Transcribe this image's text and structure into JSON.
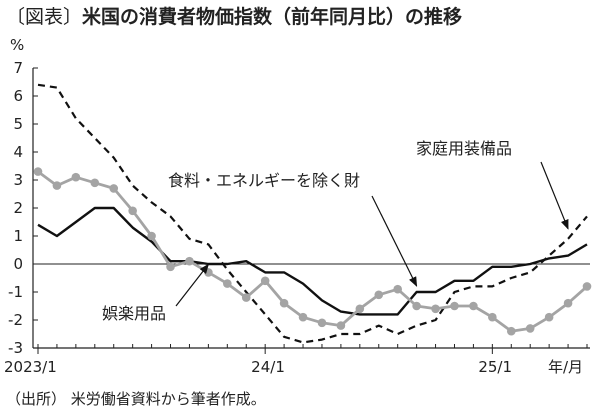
{
  "header": {
    "prefix": "〔図表〕",
    "title": "米国の消費者物価指数（前年同月比）の推移"
  },
  "footer": {
    "source": "（出所）  米労働省資料から筆者作成。"
  },
  "chart_data": {
    "type": "line",
    "ylabel": "%",
    "xlabel": "年/月",
    "ylim": [
      -3,
      7
    ],
    "yticks": [
      -3,
      -2,
      -1,
      0,
      1,
      2,
      3,
      4,
      5,
      6,
      7
    ],
    "x_start": "2023/1",
    "x_months": 30,
    "x_ticks": [
      {
        "index": 0,
        "label": "2023/1"
      },
      {
        "index": 12,
        "label": "24/1"
      },
      {
        "index": 24,
        "label": "25/1"
      }
    ],
    "zero_line": true,
    "grid": false,
    "series": [
      {
        "name": "食料・エネルギーを除く財",
        "style": "solid-black",
        "values": [
          1.4,
          1.0,
          1.5,
          2.0,
          2.0,
          1.3,
          0.8,
          0.1,
          0.1,
          0.0,
          0.0,
          0.1,
          -0.3,
          -0.3,
          -0.7,
          -1.3,
          -1.7,
          -1.8,
          -1.8,
          -1.8,
          -1.0,
          -1.0,
          -0.6,
          -0.6,
          -0.1,
          -0.1,
          0.0,
          0.2,
          0.3,
          0.7
        ]
      },
      {
        "name": "家庭用装備品",
        "style": "dashed-black",
        "values": [
          6.4,
          6.3,
          5.2,
          4.5,
          3.8,
          2.8,
          2.2,
          1.7,
          0.9,
          0.7,
          -0.2,
          -1.0,
          -1.8,
          -2.6,
          -2.8,
          -2.7,
          -2.5,
          -2.5,
          -2.2,
          -2.5,
          -2.2,
          -2.0,
          -1.0,
          -0.8,
          -0.8,
          -0.5,
          -0.3,
          0.3,
          0.9,
          1.7
        ]
      },
      {
        "name": "娯楽用品",
        "style": "gray-markers",
        "values": [
          3.3,
          2.8,
          3.1,
          2.9,
          2.7,
          1.9,
          1.0,
          -0.1,
          0.1,
          -0.3,
          -0.7,
          -1.2,
          -0.6,
          -1.4,
          -1.9,
          -2.1,
          -2.2,
          -1.6,
          -1.1,
          -0.9,
          -1.5,
          -1.6,
          -1.5,
          -1.5,
          -1.9,
          -2.4,
          -2.3,
          -1.9,
          -1.4,
          -0.8
        ]
      }
    ],
    "annotations": [
      {
        "text": "食料・エネルギーを除く財",
        "series": 0
      },
      {
        "text": "家庭用装備品",
        "series": 1
      },
      {
        "text": "娯楽用品",
        "series": 2
      }
    ]
  }
}
